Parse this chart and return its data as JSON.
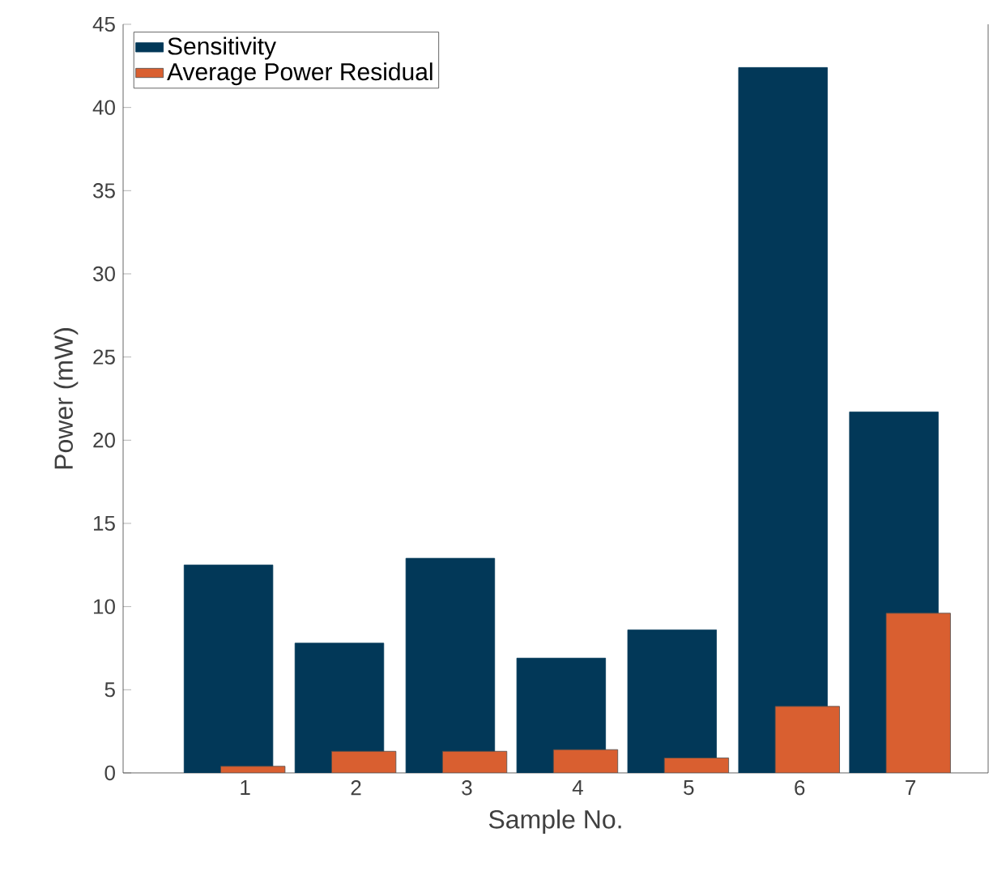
{
  "chart_data": {
    "type": "bar",
    "xlabel": "Sample No.",
    "ylabel": "Power (mW)",
    "categories": [
      "1",
      "2",
      "3",
      "4",
      "5",
      "6",
      "7"
    ],
    "series": [
      {
        "name": "Sensitivity",
        "color": "#023858",
        "values": [
          12.5,
          7.8,
          12.9,
          6.9,
          8.6,
          42.4,
          21.7
        ]
      },
      {
        "name": "Average Power Residual",
        "color": "#d95f30",
        "values": [
          0.4,
          1.3,
          1.3,
          1.4,
          0.9,
          4.0,
          9.6
        ]
      }
    ],
    "ylim": [
      0,
      45
    ],
    "yticks": [
      0,
      5,
      10,
      15,
      20,
      25,
      30,
      35,
      40,
      45
    ],
    "legend": "top left"
  }
}
